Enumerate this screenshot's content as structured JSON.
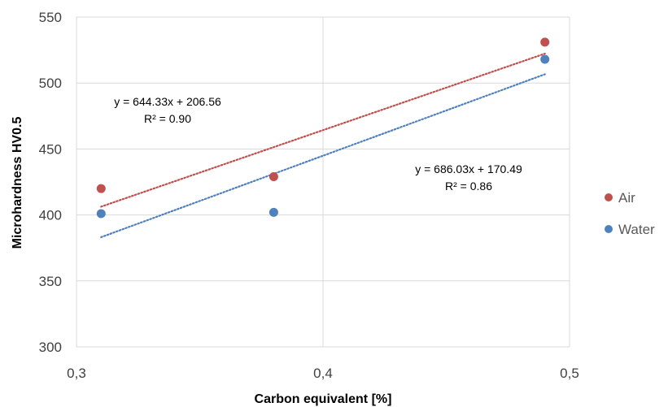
{
  "chart_data": {
    "type": "scatter",
    "title": "",
    "xlabel": "Carbon equivalent [%]",
    "ylabel": "Microhardness HV0.5",
    "xlim": [
      0.3,
      0.5
    ],
    "ylim": [
      300,
      550
    ],
    "x_ticks": [
      0.3,
      0.4,
      0.5
    ],
    "x_tick_labels": [
      "0,3",
      "0,4",
      "0,5"
    ],
    "y_ticks": [
      300,
      350,
      400,
      450,
      500,
      550
    ],
    "y_tick_labels": [
      "300",
      "350",
      "400",
      "450",
      "500",
      "550"
    ],
    "grid": true,
    "legend_position": "right",
    "series": [
      {
        "name": "Air",
        "color": "#C0504D",
        "x": [
          0.31,
          0.38,
          0.49
        ],
        "y": [
          420,
          429,
          531
        ],
        "trendline": {
          "slope": 644.33,
          "intercept": 206.56
        },
        "equation": "y = 644.33x + 206.56",
        "r2": "R² = 0.90"
      },
      {
        "name": "Water",
        "color": "#4F81BD",
        "x": [
          0.31,
          0.38,
          0.49
        ],
        "y": [
          401,
          402,
          518
        ],
        "trendline": {
          "slope": 686.03,
          "intercept": 170.49
        },
        "equation": "y = 686.03x + 170.49",
        "r2": "R² = 0.86"
      }
    ]
  }
}
